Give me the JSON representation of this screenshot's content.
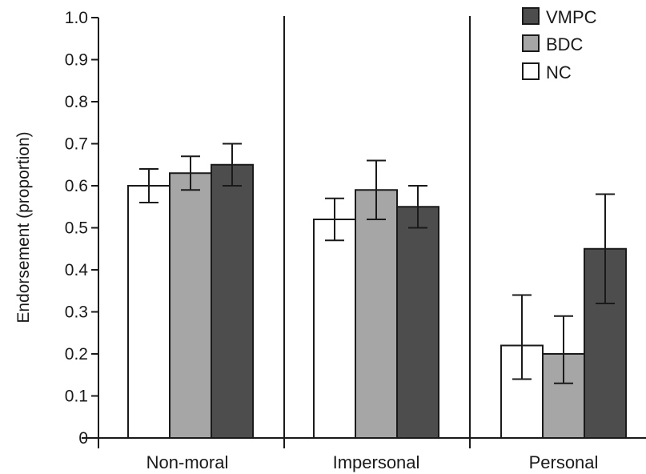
{
  "chart_data": {
    "type": "bar",
    "title": "",
    "xlabel": "",
    "ylabel": "Endorsement (proportion)",
    "ylim": [
      0,
      1.0
    ],
    "yticks": [
      "0",
      "0.1",
      "0.2",
      "0.3",
      "0.4",
      "0.5",
      "0.6",
      "0.7",
      "0.8",
      "0.9",
      "1.0"
    ],
    "categories": [
      "Non-moral",
      "Impersonal",
      "Personal"
    ],
    "legend_position": "top-right",
    "grid": false,
    "series": [
      {
        "name": "NC",
        "color": "#ffffff",
        "values": [
          0.6,
          0.52,
          0.22
        ],
        "err_low": [
          0.56,
          0.47,
          0.14
        ],
        "err_high": [
          0.64,
          0.57,
          0.34
        ]
      },
      {
        "name": "BDC",
        "color": "#a6a6a6",
        "values": [
          0.63,
          0.59,
          0.2
        ],
        "err_low": [
          0.59,
          0.52,
          0.13
        ],
        "err_high": [
          0.67,
          0.66,
          0.29
        ]
      },
      {
        "name": "VMPC",
        "color": "#4d4d4d",
        "values": [
          0.65,
          0.55,
          0.45
        ],
        "err_low": [
          0.6,
          0.5,
          0.32
        ],
        "err_high": [
          0.7,
          0.6,
          0.58
        ]
      }
    ],
    "legend_order": [
      "VMPC",
      "BDC",
      "NC"
    ]
  }
}
